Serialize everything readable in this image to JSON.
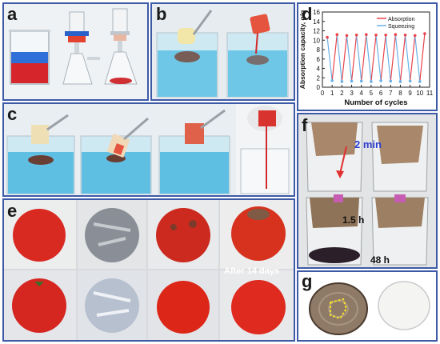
{
  "panel_labels": {
    "a": "a",
    "b": "b",
    "c": "c",
    "d": "d",
    "e": "e",
    "f": "f",
    "g": "g"
  },
  "overlays": {
    "f_time_2min": "2 min",
    "f_time_1_5h": "1.5 h",
    "f_time_48h": "48 h",
    "e_after": "After 14 days"
  },
  "colors": {
    "frame": "#3c5aa8",
    "absorption": "#e8434b",
    "squeezing": "#6ab0e6",
    "water": "#6ec7e6",
    "oil_red": "#d12a2a"
  },
  "icons": [
    "beaker-icon",
    "filter-funnel-icon",
    "sponge-icon",
    "tweezers-icon",
    "tomato-icon",
    "newspaper-wrap-icon",
    "arrow-icon"
  ],
  "chart_data": {
    "type": "line",
    "xlabel": "Number of cycles",
    "ylabel": "Absorption capacity, g/g",
    "xlim": [
      0,
      11
    ],
    "ylim": [
      0,
      16
    ],
    "xticks": [
      0,
      1,
      2,
      3,
      4,
      5,
      6,
      7,
      8,
      9,
      10,
      11
    ],
    "yticks": [
      0,
      2,
      4,
      6,
      8,
      10,
      12,
      14,
      16
    ],
    "legend_position": "top-right",
    "grid": false,
    "series": [
      {
        "name": "Absorption",
        "color": "#e8434b",
        "x": [
          0.5,
          1.5,
          2.5,
          3.5,
          4.5,
          5.5,
          6.5,
          7.5,
          8.5,
          9.5,
          10.5
        ],
        "y": [
          10.6,
          11.2,
          11.0,
          11.1,
          11.2,
          11.1,
          11.1,
          11.2,
          11.1,
          11.0,
          11.4
        ]
      },
      {
        "name": "Squeezing",
        "color": "#6ab0e6",
        "x": [
          1,
          2,
          3,
          4,
          5,
          6,
          7,
          8,
          9,
          10
        ],
        "y": [
          1.4,
          1.2,
          1.3,
          1.3,
          1.2,
          1.4,
          1.3,
          1.2,
          1.3,
          1.2
        ]
      }
    ]
  }
}
